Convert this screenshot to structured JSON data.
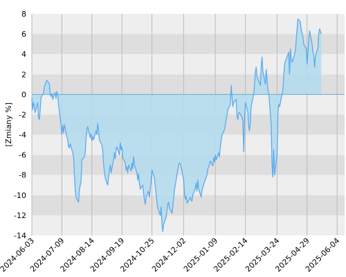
{
  "chart_data": {
    "type": "area",
    "ylabel": "[Zmiany %]",
    "xlabel": "",
    "xlim": [
      "2024-06-03",
      "2025-06-13"
    ],
    "ylim": [
      -14,
      8
    ],
    "y_ticks": [
      -14,
      -12,
      -10,
      -8,
      -6,
      -4,
      -2,
      0,
      2,
      4,
      6,
      8
    ],
    "x_ticks": [
      "2024-06-03",
      "2024-07-09",
      "2024-08-14",
      "2024-09-19",
      "2024-10-25",
      "2024-12-02",
      "2025-01-09",
      "2025-02-14",
      "2025-03-24",
      "2025-04-29",
      "2025-06-04"
    ],
    "grid": true,
    "colors": {
      "line": "#5aaaf0",
      "fill": "#b4dcec",
      "band_light": "#eeeeee",
      "band_dark": "#dedede",
      "vgrid": "#bbbbbb",
      "zero_line": "#66aacc"
    },
    "series": [
      {
        "points": [
          [
            "2024-06-03",
            -0.3
          ],
          [
            "2024-06-04",
            -1.5
          ],
          [
            "2024-06-05",
            -0.8
          ],
          [
            "2024-06-06",
            -1.2
          ],
          [
            "2024-06-07",
            -1.8
          ],
          [
            "2024-06-10",
            -0.8
          ],
          [
            "2024-06-11",
            -2.3
          ],
          [
            "2024-06-12",
            -2.5
          ],
          [
            "2024-06-13",
            -1.5
          ],
          [
            "2024-06-14",
            -0.3
          ],
          [
            "2024-06-17",
            0.1
          ],
          [
            "2024-06-18",
            0.8
          ],
          [
            "2024-06-19",
            1.0
          ],
          [
            "2024-06-20",
            1.2
          ],
          [
            "2024-06-21",
            1.4
          ],
          [
            "2024-06-24",
            1.1
          ],
          [
            "2024-06-25",
            0.0
          ],
          [
            "2024-06-26",
            -0.2
          ],
          [
            "2024-06-27",
            0.1
          ],
          [
            "2024-06-28",
            -0.5
          ],
          [
            "2024-07-01",
            0.2
          ],
          [
            "2024-07-02",
            -0.4
          ],
          [
            "2024-07-03",
            0.3
          ],
          [
            "2024-07-04",
            0.0
          ],
          [
            "2024-07-05",
            -1.0
          ],
          [
            "2024-07-08",
            -3.0
          ],
          [
            "2024-07-09",
            -4.0
          ],
          [
            "2024-07-10",
            -3.1
          ],
          [
            "2024-07-11",
            -3.8
          ],
          [
            "2024-07-12",
            -3.0
          ],
          [
            "2024-07-15",
            -4.2
          ],
          [
            "2024-07-16",
            -4.5
          ],
          [
            "2024-07-17",
            -5.2
          ],
          [
            "2024-07-18",
            -5.3
          ],
          [
            "2024-07-19",
            -4.9
          ],
          [
            "2024-07-22",
            -5.8
          ],
          [
            "2024-07-23",
            -6.2
          ],
          [
            "2024-07-24",
            -8.0
          ],
          [
            "2024-07-25",
            -9.5
          ],
          [
            "2024-07-26",
            -10.2
          ],
          [
            "2024-07-29",
            -10.7
          ],
          [
            "2024-07-30",
            -9.5
          ],
          [
            "2024-07-31",
            -9.0
          ],
          [
            "2024-08-01",
            -8.7
          ],
          [
            "2024-08-02",
            -6.5
          ],
          [
            "2024-08-05",
            -6.2
          ],
          [
            "2024-08-06",
            -5.8
          ],
          [
            "2024-08-07",
            -4.5
          ],
          [
            "2024-08-08",
            -3.5
          ],
          [
            "2024-08-09",
            -3.2
          ],
          [
            "2024-08-12",
            -4.3
          ],
          [
            "2024-08-13",
            -3.9
          ],
          [
            "2024-08-14",
            -4.6
          ],
          [
            "2024-08-15",
            -4.2
          ],
          [
            "2024-08-16",
            -4.5
          ],
          [
            "2024-08-19",
            -3.6
          ],
          [
            "2024-08-20",
            -4.0
          ],
          [
            "2024-08-21",
            -2.9
          ],
          [
            "2024-08-22",
            -3.6
          ],
          [
            "2024-08-23",
            -4.5
          ],
          [
            "2024-08-26",
            -5.0
          ],
          [
            "2024-08-27",
            -5.6
          ],
          [
            "2024-08-28",
            -7.0
          ],
          [
            "2024-08-29",
            -7.6
          ],
          [
            "2024-08-30",
            -8.3
          ],
          [
            "2024-09-02",
            -9.0
          ],
          [
            "2024-09-03",
            -8.2
          ],
          [
            "2024-09-04",
            -7.5
          ],
          [
            "2024-09-05",
            -7.0
          ],
          [
            "2024-09-06",
            -7.8
          ],
          [
            "2024-09-09",
            -6.5
          ],
          [
            "2024-09-10",
            -5.8
          ],
          [
            "2024-09-11",
            -6.4
          ],
          [
            "2024-09-12",
            -5.5
          ],
          [
            "2024-09-13",
            -5.2
          ],
          [
            "2024-09-16",
            -6.0
          ],
          [
            "2024-09-17",
            -4.8
          ],
          [
            "2024-09-18",
            -5.5
          ],
          [
            "2024-09-19",
            -5.2
          ],
          [
            "2024-09-20",
            -6.3
          ],
          [
            "2024-09-23",
            -6.8
          ],
          [
            "2024-09-24",
            -7.5
          ],
          [
            "2024-09-25",
            -7.2
          ],
          [
            "2024-09-26",
            -7.8
          ],
          [
            "2024-09-27",
            -7.0
          ],
          [
            "2024-09-30",
            -7.6
          ],
          [
            "2024-10-01",
            -6.8
          ],
          [
            "2024-10-02",
            -7.4
          ],
          [
            "2024-10-03",
            -6.2
          ],
          [
            "2024-10-04",
            -7.0
          ],
          [
            "2024-10-07",
            -7.8
          ],
          [
            "2024-10-08",
            -8.5
          ],
          [
            "2024-10-09",
            -7.9
          ],
          [
            "2024-10-10",
            -8.8
          ],
          [
            "2024-10-11",
            -9.4
          ],
          [
            "2024-10-14",
            -9.0
          ],
          [
            "2024-10-15",
            -9.8
          ],
          [
            "2024-10-16",
            -10.5
          ],
          [
            "2024-10-17",
            -10.9
          ],
          [
            "2024-10-18",
            -10.2
          ],
          [
            "2024-10-21",
            -9.6
          ],
          [
            "2024-10-22",
            -10.2
          ],
          [
            "2024-10-23",
            -9.4
          ],
          [
            "2024-10-24",
            -8.6
          ],
          [
            "2024-10-25",
            -7.5
          ],
          [
            "2024-10-28",
            -8.3
          ],
          [
            "2024-10-29",
            -9.2
          ],
          [
            "2024-10-30",
            -9.9
          ],
          [
            "2024-10-31",
            -10.6
          ],
          [
            "2024-11-01",
            -11.3
          ],
          [
            "2024-11-04",
            -12.0
          ],
          [
            "2024-11-05",
            -11.2
          ],
          [
            "2024-11-06",
            -12.8
          ],
          [
            "2024-11-07",
            -13.6
          ],
          [
            "2024-11-08",
            -12.9
          ],
          [
            "2024-11-11",
            -12.2
          ],
          [
            "2024-11-12",
            -11.5
          ],
          [
            "2024-11-13",
            -10.9
          ],
          [
            "2024-11-14",
            -10.7
          ],
          [
            "2024-11-15",
            -11.3
          ],
          [
            "2024-11-18",
            -11.8
          ],
          [
            "2024-11-19",
            -11.2
          ],
          [
            "2024-11-20",
            -10.3
          ],
          [
            "2024-11-21",
            -9.5
          ],
          [
            "2024-11-22",
            -9.0
          ],
          [
            "2024-11-25",
            -7.5
          ],
          [
            "2024-11-26",
            -7.0
          ],
          [
            "2024-11-27",
            -6.8
          ],
          [
            "2024-11-28",
            -6.9
          ],
          [
            "2024-11-29",
            -7.2
          ],
          [
            "2024-12-02",
            -8.5
          ],
          [
            "2024-12-03",
            -9.8
          ],
          [
            "2024-12-04",
            -10.4
          ],
          [
            "2024-12-05",
            -10.1
          ],
          [
            "2024-12-06",
            -10.8
          ],
          [
            "2024-12-09",
            -10.4
          ],
          [
            "2024-12-10",
            -10.2
          ],
          [
            "2024-12-11",
            -10.5
          ],
          [
            "2024-12-12",
            -10.6
          ],
          [
            "2024-12-13",
            -10.0
          ],
          [
            "2024-12-16",
            -9.4
          ],
          [
            "2024-12-17",
            -8.8
          ],
          [
            "2024-12-18",
            -9.6
          ],
          [
            "2024-12-19",
            -8.5
          ],
          [
            "2024-12-20",
            -9.4
          ],
          [
            "2024-12-23",
            -10.2
          ],
          [
            "2024-12-24",
            -9.5
          ],
          [
            "2024-12-27",
            -8.7
          ],
          [
            "2024-12-30",
            -8.0
          ],
          [
            "2024-12-31",
            -7.4
          ],
          [
            "2025-01-02",
            -7.0
          ],
          [
            "2025-01-03",
            -6.6
          ],
          [
            "2025-01-06",
            -7.1
          ],
          [
            "2025-01-07",
            -6.3
          ],
          [
            "2025-01-08",
            -6.7
          ],
          [
            "2025-01-09",
            -6.0
          ],
          [
            "2025-01-10",
            -6.5
          ],
          [
            "2025-01-13",
            -5.8
          ],
          [
            "2025-01-14",
            -6.2
          ],
          [
            "2025-01-15",
            -5.2
          ],
          [
            "2025-01-16",
            -4.6
          ],
          [
            "2025-01-17",
            -4.0
          ],
          [
            "2025-01-20",
            -3.5
          ],
          [
            "2025-01-21",
            -3.0
          ],
          [
            "2025-01-22",
            -2.5
          ],
          [
            "2025-01-23",
            -2.1
          ],
          [
            "2025-01-24",
            -1.5
          ],
          [
            "2025-01-27",
            -1.0
          ],
          [
            "2025-01-28",
            0.9
          ],
          [
            "2025-01-29",
            -0.3
          ],
          [
            "2025-01-30",
            -1.2
          ],
          [
            "2025-01-31",
            -0.8
          ],
          [
            "2025-02-03",
            -0.5
          ],
          [
            "2025-02-04",
            -2.2
          ],
          [
            "2025-02-05",
            -2.5
          ],
          [
            "2025-02-06",
            -1.9
          ],
          [
            "2025-02-07",
            -1.8
          ],
          [
            "2025-02-10",
            -2.3
          ],
          [
            "2025-02-11",
            -2.6
          ],
          [
            "2025-02-12",
            -5.7
          ],
          [
            "2025-02-13",
            -2.5
          ],
          [
            "2025-02-14",
            -0.8
          ],
          [
            "2025-02-17",
            -1.8
          ],
          [
            "2025-02-18",
            -3.2
          ],
          [
            "2025-02-19",
            -3.6
          ],
          [
            "2025-02-20",
            -2.8
          ],
          [
            "2025-02-21",
            -1.2
          ],
          [
            "2025-02-24",
            0.0
          ],
          [
            "2025-02-25",
            1.0
          ],
          [
            "2025-02-26",
            2.2
          ],
          [
            "2025-02-27",
            2.7
          ],
          [
            "2025-02-28",
            1.8
          ],
          [
            "2025-03-03",
            1.1
          ],
          [
            "2025-03-04",
            0.9
          ],
          [
            "2025-03-05",
            2.8
          ],
          [
            "2025-03-06",
            3.7
          ],
          [
            "2025-03-07",
            2.3
          ],
          [
            "2025-03-10",
            1.0
          ],
          [
            "2025-03-11",
            2.5
          ],
          [
            "2025-03-12",
            1.5
          ],
          [
            "2025-03-13",
            0.5
          ],
          [
            "2025-03-14",
            0.2
          ],
          [
            "2025-03-17",
            -3.0
          ],
          [
            "2025-03-18",
            -7.0
          ],
          [
            "2025-03-19",
            -8.2
          ],
          [
            "2025-03-20",
            -5.5
          ],
          [
            "2025-03-21",
            -8.0
          ],
          [
            "2025-03-24",
            -6.0
          ],
          [
            "2025-03-25",
            -2.0
          ],
          [
            "2025-03-26",
            -1.0
          ],
          [
            "2025-03-27",
            -1.2
          ],
          [
            "2025-03-28",
            -0.8
          ],
          [
            "2025-03-31",
            0.5
          ],
          [
            "2025-04-01",
            1.8
          ],
          [
            "2025-04-02",
            3.0
          ],
          [
            "2025-04-03",
            3.3
          ],
          [
            "2025-04-04",
            3.5
          ],
          [
            "2025-04-07",
            4.2
          ],
          [
            "2025-04-08",
            2.0
          ],
          [
            "2025-04-09",
            4.5
          ],
          [
            "2025-04-10",
            3.6
          ],
          [
            "2025-04-11",
            3.2
          ],
          [
            "2025-04-14",
            4.0
          ],
          [
            "2025-04-15",
            4.3
          ],
          [
            "2025-04-16",
            5.5
          ],
          [
            "2025-04-17",
            6.5
          ],
          [
            "2025-04-18",
            7.5
          ],
          [
            "2025-04-21",
            7.2
          ],
          [
            "2025-04-22",
            6.4
          ],
          [
            "2025-04-23",
            6.1
          ],
          [
            "2025-04-24",
            5.8
          ],
          [
            "2025-04-25",
            5.0
          ],
          [
            "2025-04-28",
            4.5
          ],
          [
            "2025-04-29",
            3.0
          ],
          [
            "2025-04-30",
            4.2
          ],
          [
            "2025-05-01",
            5.5
          ],
          [
            "2025-05-02",
            6.3
          ],
          [
            "2025-05-05",
            5.0
          ],
          [
            "2025-05-06",
            4.2
          ],
          [
            "2025-05-07",
            4.0
          ],
          [
            "2025-05-08",
            2.7
          ],
          [
            "2025-05-09",
            3.8
          ],
          [
            "2025-05-12",
            4.6
          ],
          [
            "2025-05-13",
            6.0
          ],
          [
            "2025-05-14",
            6.5
          ],
          [
            "2025-05-15",
            6.3
          ],
          [
            "2025-05-16",
            6.0
          ]
        ]
      }
    ]
  }
}
